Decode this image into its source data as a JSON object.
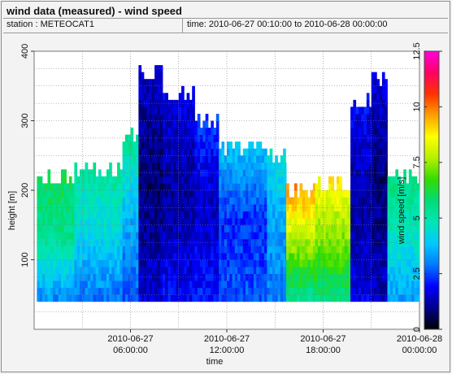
{
  "header": {
    "title": "wind data (measured) - wind speed",
    "station": "station : METEOCAT1",
    "time_range": "time: 2010-06-27 00:10:00 to 2010-06-28 00:00:00"
  },
  "chart_data": {
    "type": "heatmap",
    "title": "wind data (measured) - wind speed",
    "xlabel": "time",
    "ylabel": "height [m]",
    "colorbar_label": "wind speed [m/s]",
    "ylim": [
      0,
      400
    ],
    "xlim_hours": [
      0,
      24
    ],
    "y_ticks": [
      "100",
      "200",
      "300",
      "400"
    ],
    "x_ticks": [
      {
        "line1": "2010-06-27",
        "line2": "06:00:00",
        "hour": 6
      },
      {
        "line1": "2010-06-27",
        "line2": "12:00:00",
        "hour": 12
      },
      {
        "line1": "2010-06-27",
        "line2": "18:00:00",
        "hour": 18
      },
      {
        "line1": "2010-06-28",
        "line2": "00:00:00",
        "hour": 24
      }
    ],
    "colorbar_ticks": [
      "0",
      "2.5",
      "5",
      "7.5",
      "10",
      "12.5"
    ],
    "colorbar_range": [
      0,
      12.5
    ],
    "grid": true,
    "colormap": [
      "#000000",
      "#00008b",
      "#0000ff",
      "#0078ff",
      "#00c8ff",
      "#00e6b4",
      "#00dc78",
      "#32dc00",
      "#b4f000",
      "#ffff00",
      "#ffa000",
      "#ff3200",
      "#ff0064",
      "#ff00dc"
    ],
    "data_start_height_m": 40,
    "layer_step_m": 10,
    "bin_minutes": 10,
    "segments": [
      {
        "start_h": 0.17,
        "end_h": 2.5,
        "top_m": 220,
        "low_speed": 3.2,
        "mid_speed": 5.4,
        "top_speed": 6.1
      },
      {
        "start_h": 2.5,
        "end_h": 5.5,
        "top_m": 230,
        "low_speed": 2.9,
        "mid_speed": 4.3,
        "top_speed": 5.2
      },
      {
        "start_h": 5.5,
        "end_h": 6.5,
        "top_m": 280,
        "low_speed": 2.6,
        "mid_speed": 3.6,
        "top_speed": 5.5
      },
      {
        "start_h": 6.5,
        "end_h": 8.0,
        "top_m": 365,
        "low_speed": 1.6,
        "mid_speed": 0.7,
        "top_speed": 1.4
      },
      {
        "start_h": 8.0,
        "end_h": 10.0,
        "top_m": 340,
        "low_speed": 1.9,
        "mid_speed": 1.1,
        "top_speed": 1.8
      },
      {
        "start_h": 10.0,
        "end_h": 11.5,
        "top_m": 300,
        "low_speed": 2.1,
        "mid_speed": 1.4,
        "top_speed": 2.4
      },
      {
        "start_h": 11.5,
        "end_h": 14.5,
        "top_m": 260,
        "low_speed": 2.6,
        "mid_speed": 2.2,
        "top_speed": 3.9
      },
      {
        "start_h": 14.5,
        "end_h": 15.7,
        "top_m": 250,
        "low_speed": 3.0,
        "mid_speed": 3.3,
        "top_speed": 4.5
      },
      {
        "start_h": 15.7,
        "end_h": 17.5,
        "top_m": 200,
        "low_speed": 5.4,
        "mid_speed": 7.6,
        "top_speed": 9.8
      },
      {
        "start_h": 17.5,
        "end_h": 19.7,
        "top_m": 210,
        "low_speed": 5.7,
        "mid_speed": 7.3,
        "top_speed": 8.7
      },
      {
        "start_h": 19.7,
        "end_h": 21.0,
        "top_m": 330,
        "low_speed": 1.7,
        "mid_speed": 1.1,
        "top_speed": 2.0
      },
      {
        "start_h": 21.0,
        "end_h": 22.0,
        "top_m": 360,
        "low_speed": 1.4,
        "mid_speed": 0.8,
        "top_speed": 1.6
      },
      {
        "start_h": 22.0,
        "end_h": 24.0,
        "top_m": 215,
        "low_speed": 3.4,
        "mid_speed": 4.6,
        "top_speed": 5.6
      }
    ]
  }
}
